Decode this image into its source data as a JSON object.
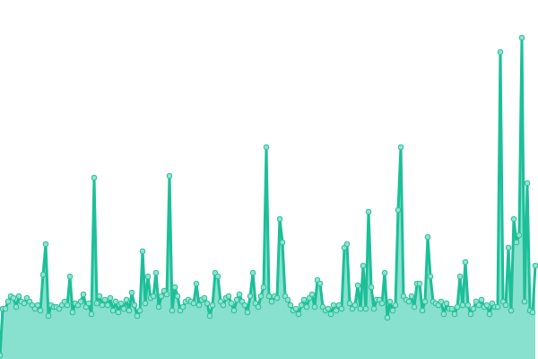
{
  "chart_data": {
    "type": "area",
    "title": "",
    "xlabel": "",
    "ylabel": "",
    "grid": false,
    "legend": "none",
    "ylim": [
      0,
      100
    ],
    "colors": {
      "line": "#1dbf98",
      "fill": "#88e0cf",
      "marker_fill": "#8fe3d0",
      "marker_stroke": "#2bbf98"
    },
    "values": [
      1,
      14,
      14,
      16,
      17.5,
      17,
      14.5,
      17.5,
      16,
      15.5,
      17,
      16,
      15,
      14,
      15,
      13.5,
      23.5,
      32,
      12,
      15,
      14.5,
      14.5,
      14,
      15,
      16,
      15,
      23,
      13,
      15.5,
      15,
      16,
      18,
      14.5,
      15.5,
      12.5,
      50.5,
      15.5,
      17.5,
      15,
      16.5,
      15,
      17,
      13.5,
      16,
      13,
      15.5,
      14,
      16.5,
      13.5,
      18.5,
      15,
      12,
      13.5,
      30,
      15.5,
      23,
      17,
      17.5,
      24,
      14.5,
      17.5,
      19,
      18,
      51,
      13.5,
      20,
      17.5,
      13.5,
      14.5,
      16,
      16.5,
      16,
      15.5,
      21,
      15,
      16.5,
      17,
      15.5,
      12,
      15,
      24,
      23,
      16,
      15,
      17,
      17.5,
      15.5,
      13.5,
      16.5,
      18,
      16,
      15,
      13,
      17.5,
      24,
      15.5,
      14.5,
      17.5,
      20,
      59,
      17.5,
      16,
      17.5,
      17,
      39,
      32.5,
      17.5,
      16.5,
      15,
      13.5,
      14,
      12.5,
      15,
      16.5,
      14.5,
      17,
      18,
      14.5,
      22,
      21,
      14.5,
      13.5,
      14,
      12.5,
      15,
      13.5,
      15,
      14,
      31,
      32,
      15.5,
      14,
      15,
      20.5,
      14,
      26,
      14,
      41,
      20,
      14,
      16.5,
      16.5,
      15.5,
      24,
      11.5,
      16,
      13.5,
      15,
      41.5,
      59,
      17.5,
      16.5,
      16,
      17.5,
      14.5,
      21,
      21,
      13.5,
      16,
      34,
      23,
      16,
      15.5,
      15,
      16,
      12.5,
      15.5,
      14,
      14,
      12.5,
      14.5,
      23,
      15,
      27,
      15,
      12.5,
      14,
      16,
      15,
      16.5,
      14.5,
      15,
      12.5,
      15.5,
      14.5,
      14.5,
      85.5,
      16,
      15,
      31,
      13.5,
      39,
      32.5,
      34.5,
      89.5,
      16,
      49,
      13.5,
      13,
      26
    ]
  }
}
